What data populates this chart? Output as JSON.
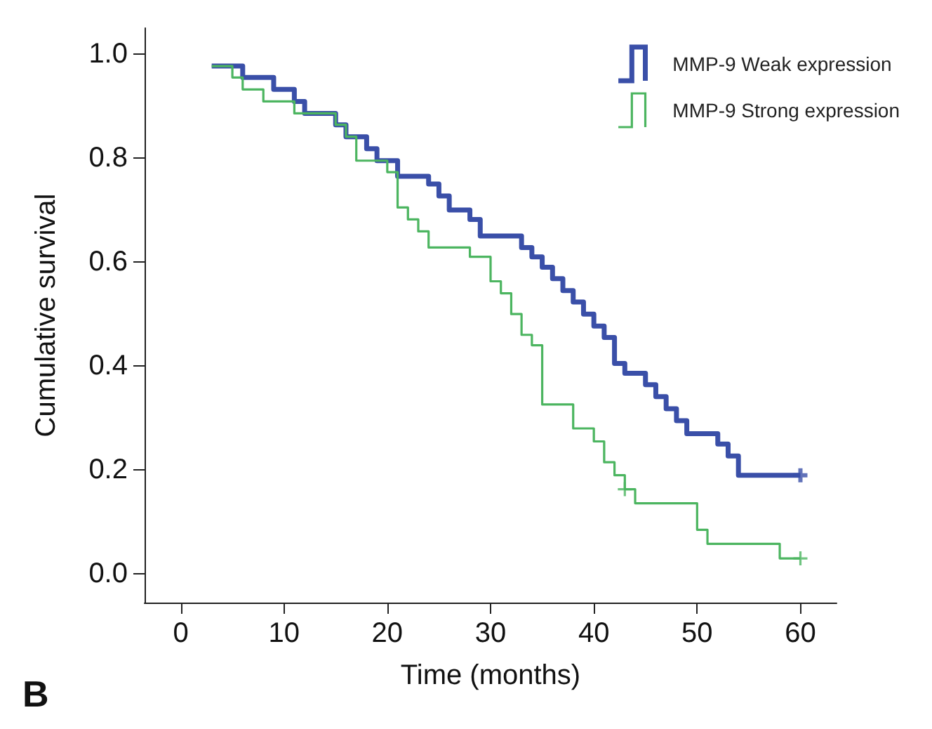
{
  "chart_data": {
    "type": "step",
    "xlabel": "Time (months)",
    "ylabel": "Cumulative survival",
    "annotations": [
      "B"
    ],
    "series": [
      {
        "name": "MMP-9 Weak expression",
        "color": "#3a4fa8",
        "x": [
          3,
          6,
          9,
          11,
          12,
          15,
          16,
          18,
          19,
          21,
          24,
          25,
          26,
          28,
          29,
          33,
          34,
          35,
          36,
          37,
          38,
          39,
          40,
          41,
          42,
          43,
          45,
          46,
          47,
          48,
          49,
          52,
          53,
          54,
          60
        ],
        "values": [
          0.977,
          0.955,
          0.932,
          0.909,
          0.886,
          0.864,
          0.841,
          0.818,
          0.795,
          0.765,
          0.75,
          0.727,
          0.7,
          0.682,
          0.65,
          0.628,
          0.61,
          0.59,
          0.568,
          0.545,
          0.523,
          0.5,
          0.477,
          0.455,
          0.405,
          0.386,
          0.364,
          0.341,
          0.318,
          0.295,
          0.27,
          0.25,
          0.227,
          0.19,
          0.19
        ]
      },
      {
        "name": "MMP-9 Strong expression",
        "color": "#4cb560",
        "x": [
          3,
          5,
          6,
          8,
          11,
          15,
          16,
          17,
          20,
          21,
          22,
          23,
          24,
          28,
          30,
          31,
          32,
          33,
          34,
          35,
          38,
          40,
          41,
          42,
          43,
          44,
          50,
          51,
          58,
          60
        ],
        "values": [
          0.977,
          0.955,
          0.932,
          0.909,
          0.886,
          0.864,
          0.841,
          0.795,
          0.773,
          0.705,
          0.682,
          0.659,
          0.628,
          0.61,
          0.563,
          0.54,
          0.5,
          0.46,
          0.44,
          0.326,
          0.28,
          0.255,
          0.215,
          0.19,
          0.163,
          0.136,
          0.085,
          0.058,
          0.03,
          0.03
        ]
      },
      {
        "type": "scatter",
        "marker": "cross",
        "color": "#3a4fa8",
        "x": [
          60
        ],
        "values": [
          0.19
        ]
      },
      {
        "type": "scatter",
        "marker": "cross",
        "color": "#4cb560",
        "x": [
          43,
          60
        ],
        "values": [
          0.163,
          0.03
        ]
      }
    ],
    "xlim": [
      -3.5,
      63.5
    ],
    "xticks": [
      0,
      10,
      20,
      30,
      40,
      50,
      60
    ],
    "ylim": [
      -0.055,
      1.05
    ],
    "yticks": [
      {
        "value": 0,
        "label": "0.0"
      },
      {
        "value": 0.2,
        "label": "0.2"
      },
      {
        "value": 0.4,
        "label": "0.4"
      },
      {
        "value": 0.6,
        "label": "0.6"
      },
      {
        "value": 0.8,
        "label": "0.8"
      },
      {
        "value": 1,
        "label": "1.0"
      }
    ],
    "grid": false,
    "legend": "top right",
    "marker": "none"
  }
}
